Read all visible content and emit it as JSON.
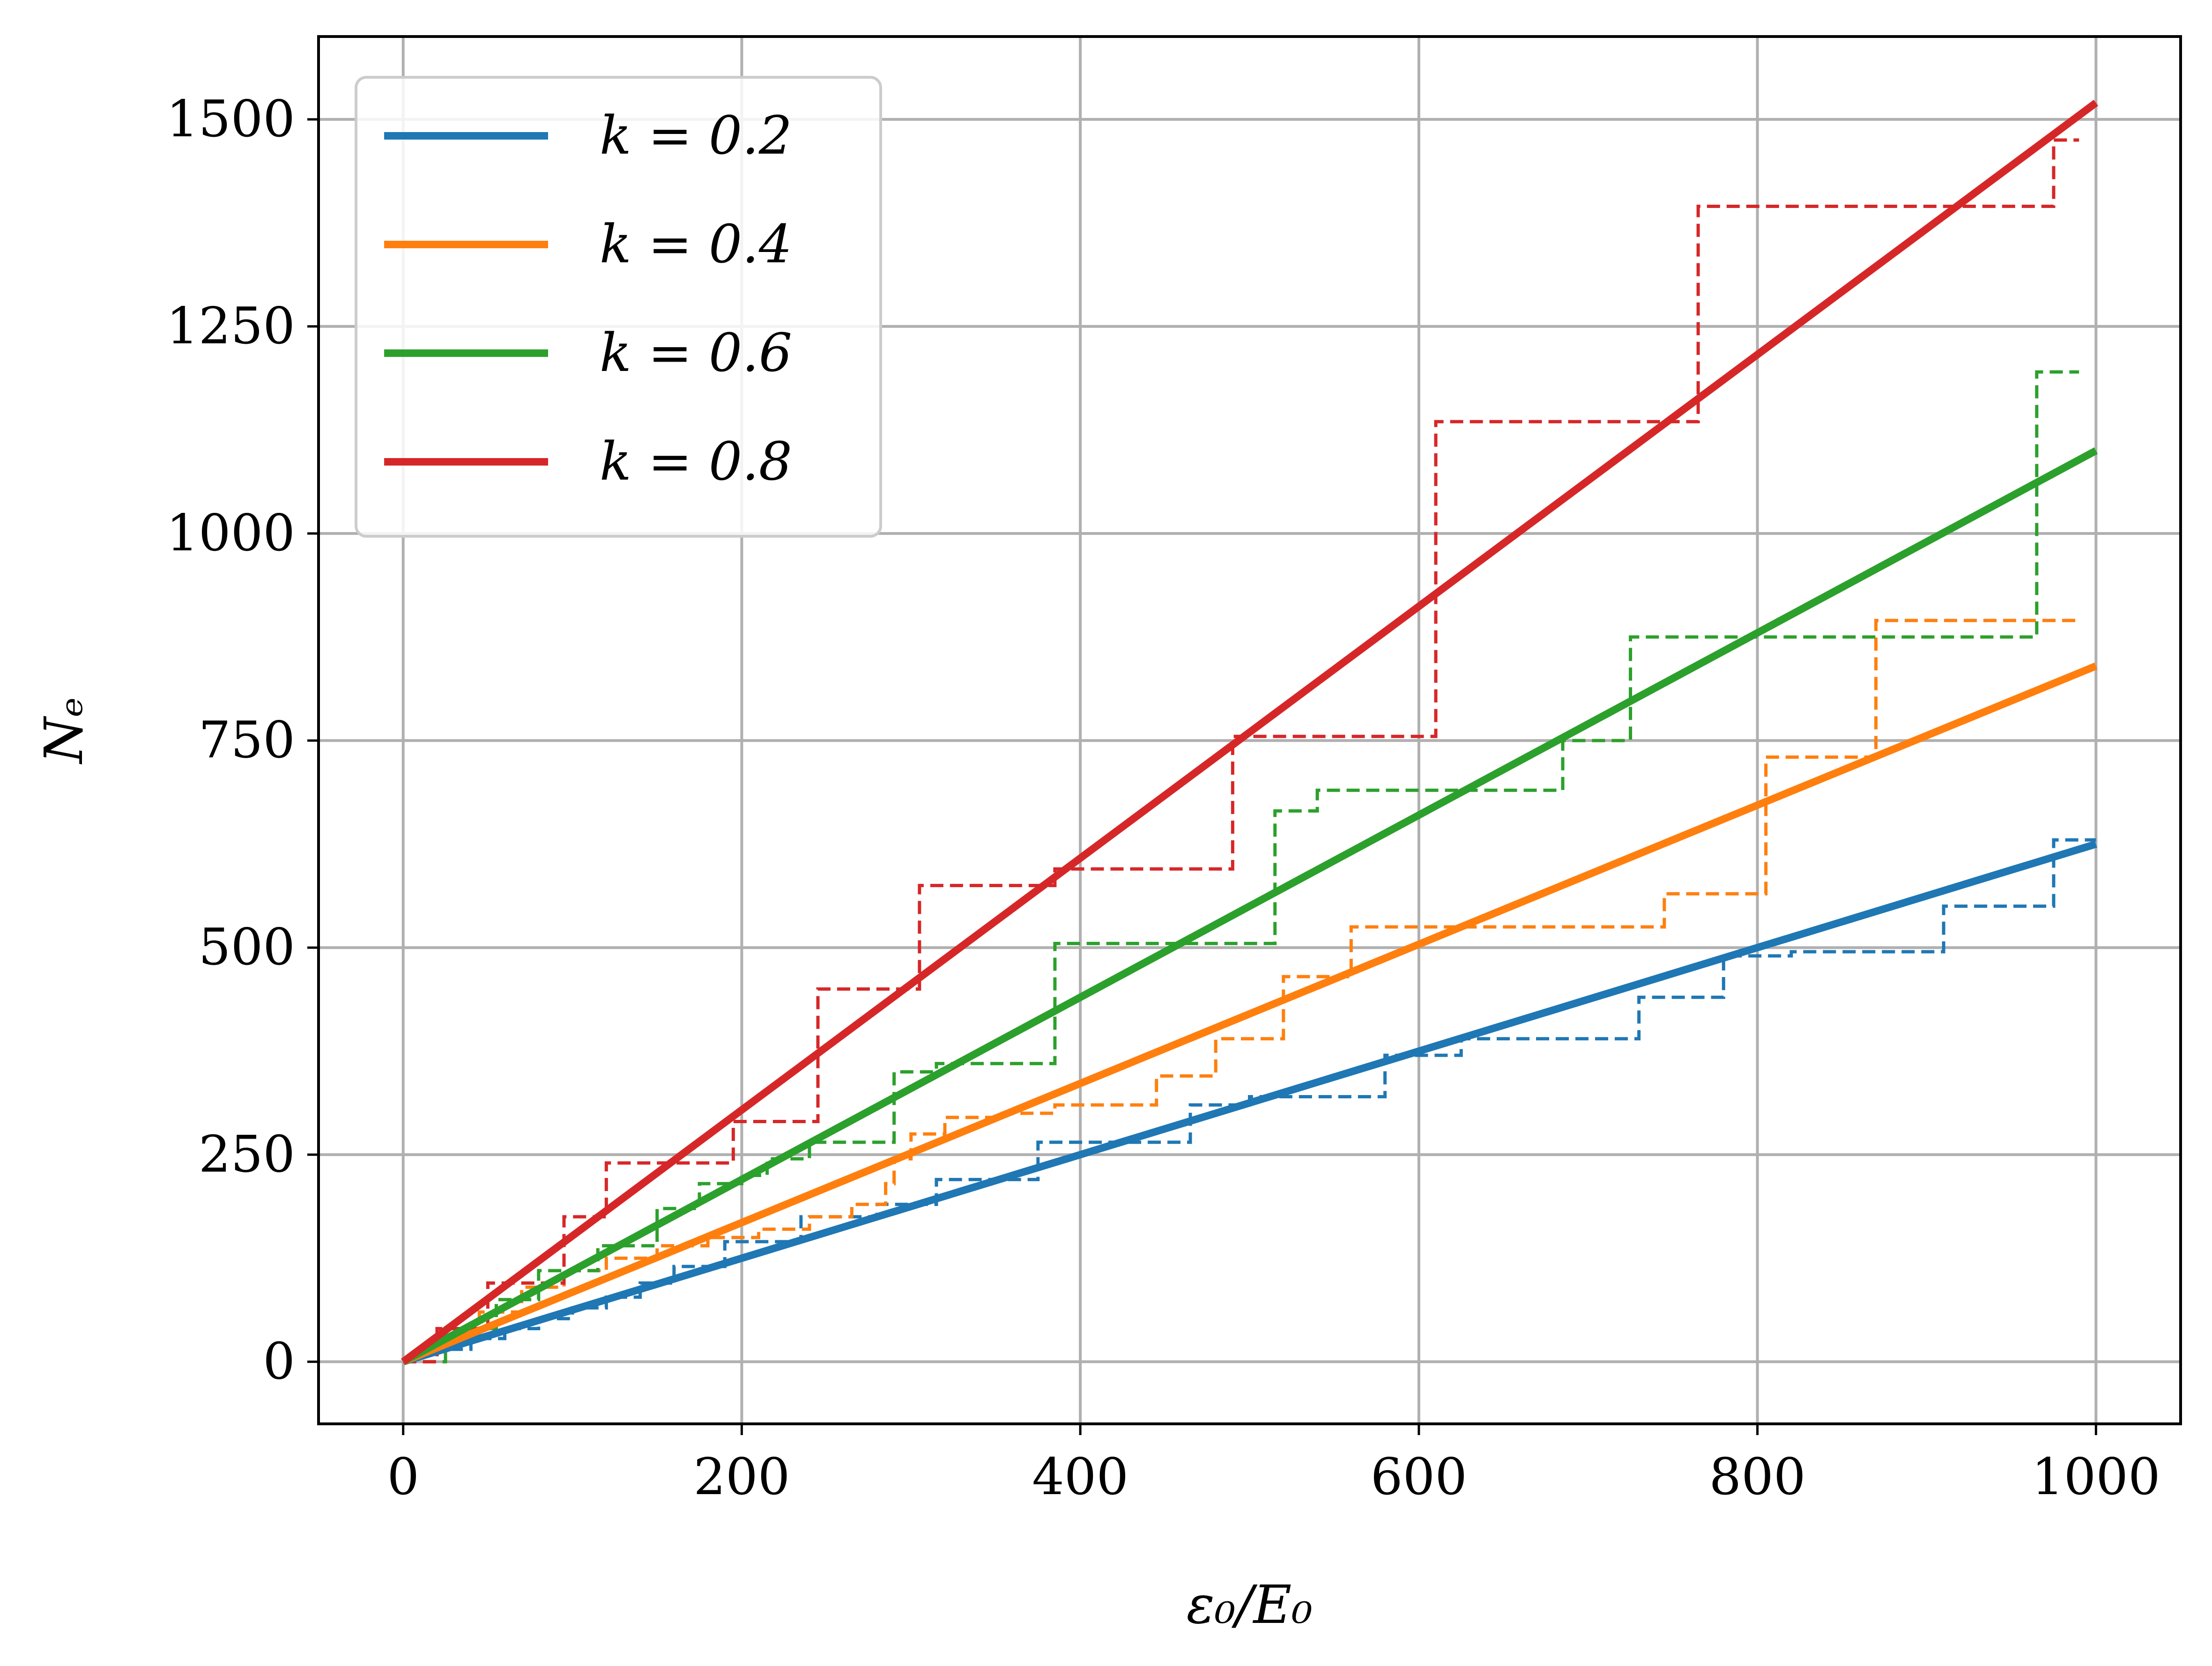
{
  "chart_data": {
    "type": "line",
    "xlabel": "ε₀/E₀",
    "ylabel": "Nₑ",
    "xlim": [
      -50,
      1050
    ],
    "ylim": [
      -75,
      1600
    ],
    "xticks": [
      0,
      200,
      400,
      600,
      800,
      1000
    ],
    "yticks": [
      0,
      250,
      500,
      750,
      1000,
      1250,
      1500
    ],
    "grid": true,
    "legend_position": "top-left",
    "series": [
      {
        "name": "k = 0.2",
        "color": "#1f77b4",
        "line": {
          "x": [
            0,
            1000
          ],
          "y": [
            0,
            625
          ]
        },
        "step": {
          "x": [
            0,
            20,
            40,
            60,
            80,
            100,
            120,
            140,
            160,
            190,
            235,
            280,
            315,
            375,
            465,
            500,
            580,
            625,
            700,
            730,
            780,
            820,
            910,
            975,
            1000
          ],
          "y": [
            0,
            15,
            28,
            40,
            52,
            65,
            78,
            95,
            115,
            145,
            175,
            190,
            220,
            265,
            310,
            320,
            370,
            390,
            390,
            440,
            490,
            495,
            550,
            630,
            630
          ]
        }
      },
      {
        "name": "k = 0.4",
        "color": "#ff7f0e",
        "line": {
          "x": [
            0,
            1000
          ],
          "y": [
            0,
            840
          ]
        },
        "step": {
          "x": [
            0,
            20,
            45,
            70,
            95,
            120,
            150,
            180,
            210,
            240,
            265,
            285,
            290,
            300,
            320,
            350,
            385,
            445,
            480,
            520,
            560,
            745,
            805,
            870,
            990
          ],
          "y": [
            0,
            30,
            60,
            90,
            110,
            125,
            140,
            150,
            160,
            175,
            190,
            215,
            245,
            275,
            295,
            300,
            310,
            345,
            390,
            465,
            525,
            565,
            730,
            895,
            895
          ]
        }
      },
      {
        "name": "k = 0.6",
        "color": "#2ca02c",
        "line": {
          "x": [
            0,
            1000
          ],
          "y": [
            0,
            1100
          ]
        },
        "step": {
          "x": [
            0,
            25,
            55,
            80,
            115,
            150,
            175,
            200,
            215,
            240,
            290,
            315,
            385,
            450,
            515,
            540,
            570,
            685,
            725,
            740,
            965,
            985,
            990
          ],
          "y": [
            0,
            40,
            75,
            110,
            140,
            185,
            215,
            225,
            245,
            265,
            350,
            360,
            505,
            505,
            665,
            690,
            690,
            750,
            875,
            875,
            1195,
            1195,
            1195
          ]
        }
      },
      {
        "name": "k = 0.8",
        "color": "#d62728",
        "line": {
          "x": [
            0,
            1000
          ],
          "y": [
            0,
            1520
          ]
        },
        "step": {
          "x": [
            0,
            20,
            50,
            95,
            120,
            195,
            245,
            305,
            385,
            490,
            610,
            765,
            975,
            990
          ],
          "y": [
            0,
            40,
            95,
            175,
            240,
            290,
            450,
            575,
            595,
            755,
            1135,
            1395,
            1475,
            1475
          ]
        }
      }
    ]
  }
}
